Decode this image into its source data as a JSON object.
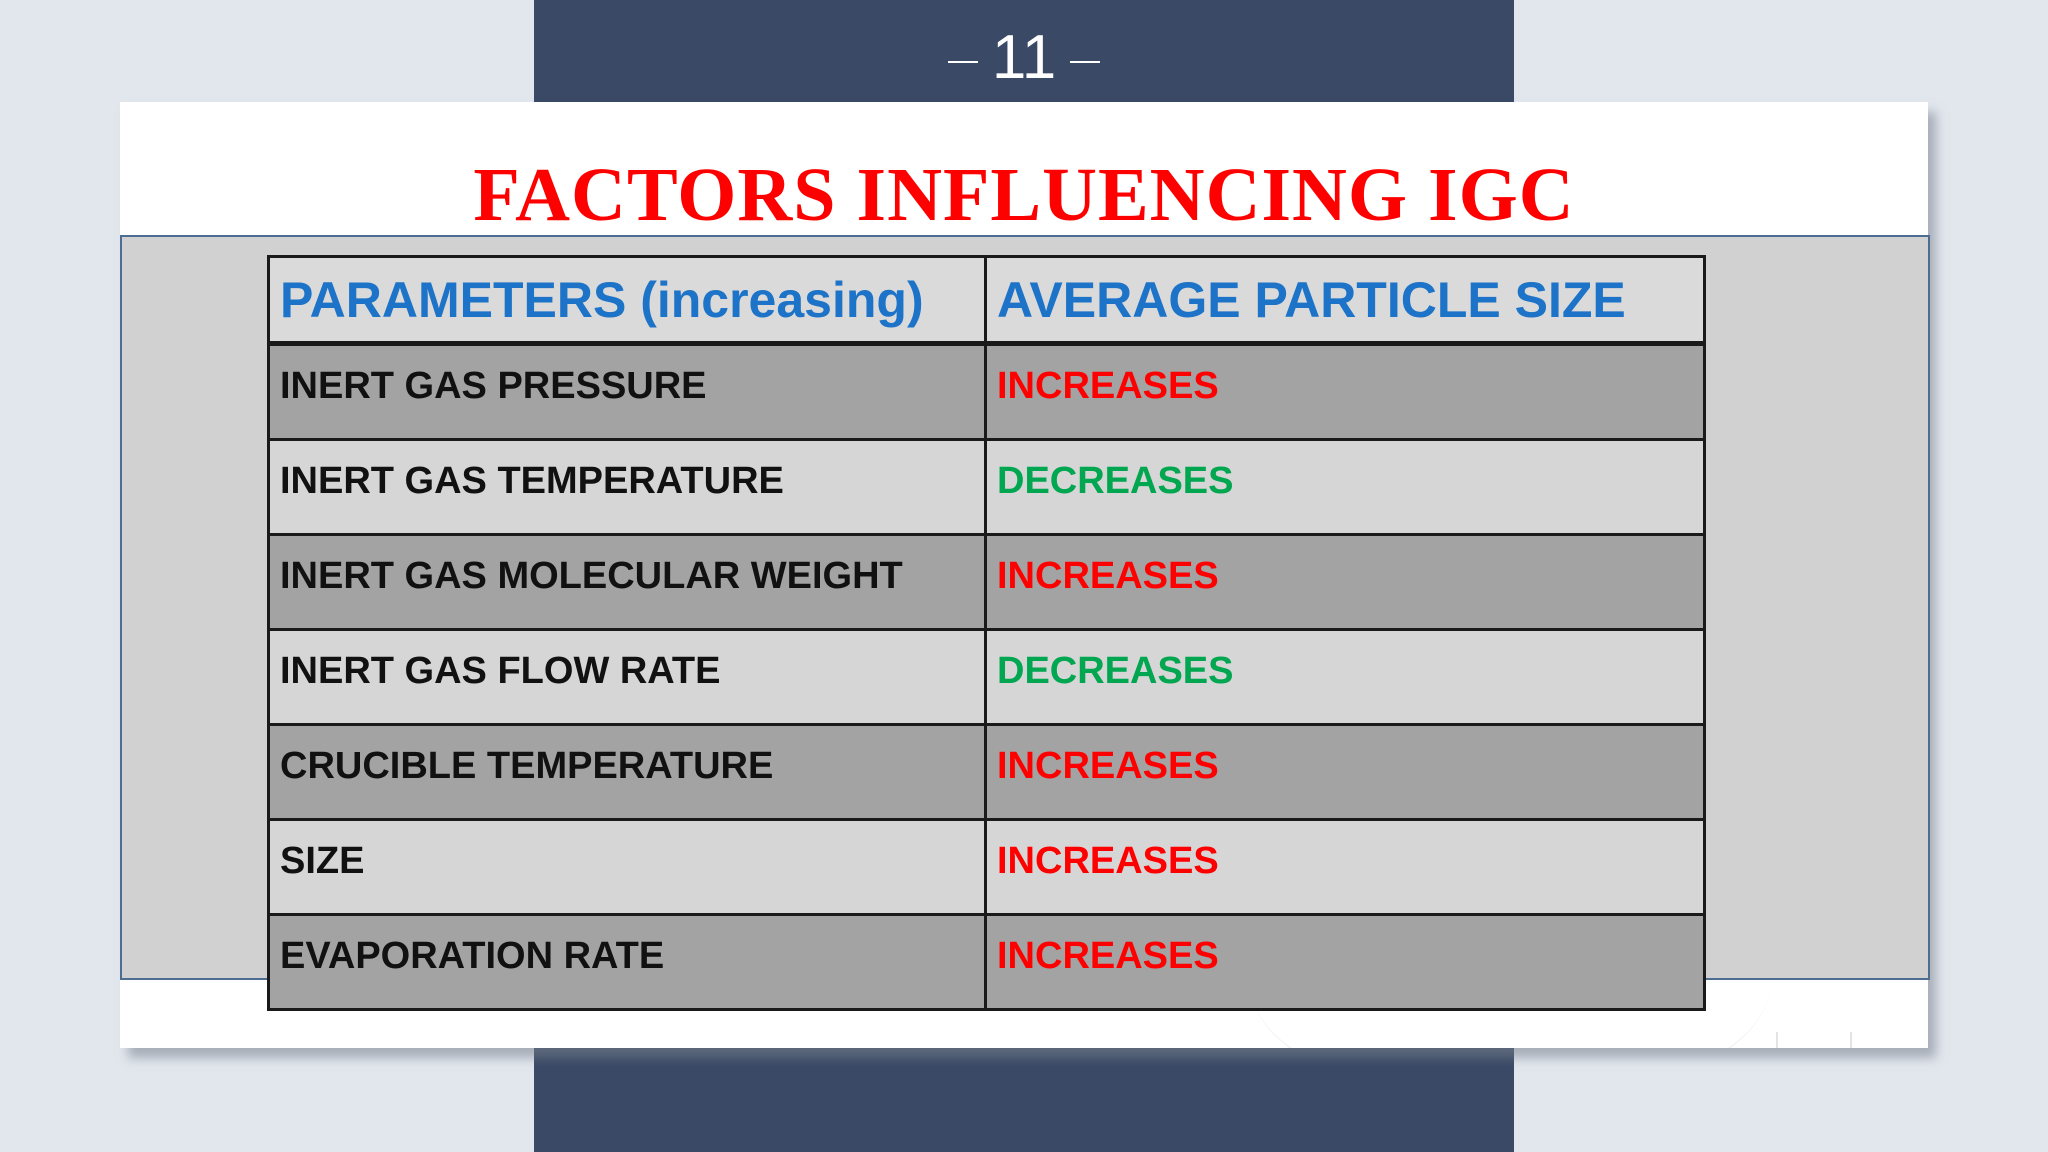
{
  "slide": {
    "page_number": "11",
    "title": "FACTORS INFLUENCING IGC"
  },
  "table": {
    "headers": [
      "PARAMETERS (increasing)",
      "AVERAGE PARTICLE SIZE"
    ],
    "rows": [
      {
        "parameter": "INERT GAS PRESSURE",
        "effect": "INCREASES"
      },
      {
        "parameter": "INERT GAS TEMPERATURE",
        "effect": "DECREASES"
      },
      {
        "parameter": "INERT GAS MOLECULAR WEIGHT",
        "effect": "INCREASES"
      },
      {
        "parameter": "INERT GAS FLOW RATE",
        "effect": "DECREASES"
      },
      {
        "parameter": "CRUCIBLE TEMPERATURE",
        "effect": "INCREASES"
      },
      {
        "parameter": "SIZE",
        "effect": "INCREASES"
      },
      {
        "parameter": "EVAPORATION  RATE",
        "effect": "INCREASES"
      }
    ]
  },
  "colors": {
    "title": "#ff0000",
    "header_text": "#1c73c7",
    "increases": "#ff0000",
    "decreases": "#00a650",
    "navy_band": "#3a4a66",
    "panel_border": "#4e6d92"
  }
}
